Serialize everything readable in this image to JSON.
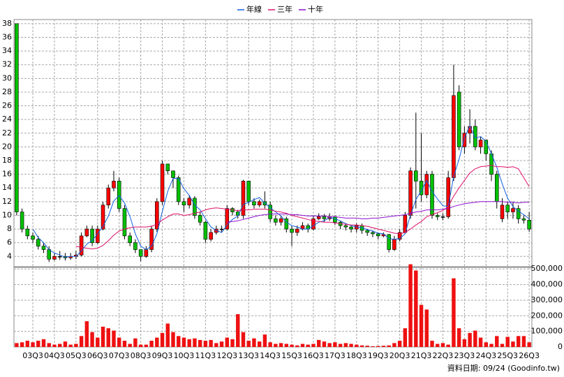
{
  "chart_data": [
    {
      "type": "candlestick",
      "categories": [
        null,
        null,
        null,
        "03Q3",
        null,
        null,
        null,
        "04Q3",
        null,
        null,
        null,
        "05Q3",
        null,
        null,
        null,
        "06Q3",
        null,
        null,
        null,
        "07Q3",
        null,
        null,
        null,
        "08Q3",
        null,
        null,
        null,
        "09Q3",
        null,
        null,
        null,
        "10Q3",
        null,
        null,
        null,
        "11Q3",
        null,
        null,
        null,
        "12Q3",
        null,
        null,
        null,
        "13Q3",
        null,
        null,
        null,
        "14Q3",
        null,
        null,
        null,
        "15Q3",
        null,
        null,
        null,
        "16Q3",
        null,
        null,
        null,
        "17Q3",
        null,
        null,
        null,
        "18Q3",
        null,
        null,
        null,
        "19Q3",
        null,
        null,
        null,
        "20Q3",
        null,
        null,
        null,
        "21Q3",
        null,
        null,
        null,
        "22Q3",
        null,
        null,
        null,
        "23Q3",
        null,
        null,
        null,
        "24Q3",
        null,
        null,
        null,
        "25Q3",
        null,
        null,
        null,
        "26Q3"
      ],
      "open": [
        38,
        10.5,
        8,
        7,
        6.5,
        5.5,
        5,
        3.6,
        4,
        4,
        3.8,
        4,
        4.2,
        7,
        8,
        6,
        8,
        11.5,
        14,
        15,
        11,
        7,
        6,
        5,
        4,
        5,
        8,
        12,
        17.5,
        16.5,
        15.5,
        12,
        11.5,
        12.5,
        10,
        9,
        6.5,
        7.5,
        8,
        8,
        11,
        10.5,
        10,
        15,
        12,
        11.5,
        12,
        11.5,
        9.5,
        9,
        9.5,
        8,
        7.5,
        8,
        8.5,
        8,
        9.5,
        9.8,
        9.5,
        9.8,
        9,
        8.5,
        8.3,
        8,
        8.5,
        7.8,
        7.5,
        7.3,
        7,
        7.2,
        5,
        6.5,
        7.5,
        10,
        16.5,
        15,
        13,
        16,
        10,
        9.8,
        9.8,
        15.5,
        28,
        20,
        22,
        23,
        20,
        21,
        19,
        16,
        9.5,
        11.5,
        10.5,
        11,
        9.5,
        9.3
      ],
      "high": [
        38,
        11,
        8.5,
        7.5,
        7,
        6,
        5.5,
        4.5,
        4.8,
        4.5,
        4.5,
        4.8,
        7.5,
        8.5,
        8.5,
        8.5,
        12,
        14.5,
        16.5,
        15.5,
        11.5,
        7.5,
        6.5,
        5,
        5.5,
        8.5,
        12.5,
        18,
        17.5,
        16.5,
        15.8,
        12.5,
        13,
        12.8,
        10.5,
        9.2,
        8,
        8.5,
        8.5,
        11.5,
        11.2,
        10.8,
        15.2,
        15,
        12.5,
        12.3,
        13.5,
        12,
        10,
        10,
        9.8,
        8.5,
        8.5,
        9,
        8.8,
        10,
        10.3,
        10.2,
        10.3,
        10,
        9.2,
        8.8,
        8.5,
        8.8,
        8.8,
        8,
        7.8,
        7.5,
        7.5,
        7.3,
        7,
        8,
        10.5,
        17,
        25,
        22,
        16.5,
        16.5,
        10.3,
        10.3,
        16.5,
        32,
        29,
        23,
        25.5,
        24,
        21.5,
        21,
        19.5,
        16.5,
        12.5,
        12,
        12,
        11.5,
        10,
        10.5
      ],
      "low": [
        10,
        7.5,
        6.5,
        6,
        5,
        4.5,
        3.2,
        3.4,
        3.5,
        3.4,
        3.5,
        3.6,
        4,
        6.8,
        5.5,
        5.8,
        7.8,
        11,
        13.5,
        10.5,
        6.5,
        5.5,
        4.5,
        3.3,
        3.8,
        4.6,
        7.6,
        11.5,
        16,
        14,
        11.5,
        10.5,
        11,
        9.5,
        8.5,
        6,
        6.2,
        7.2,
        7.5,
        7.8,
        10,
        9.5,
        9.5,
        11.5,
        11,
        11.2,
        11,
        9,
        8.5,
        8.5,
        7.5,
        5.5,
        7,
        7.8,
        7.5,
        7.8,
        9.3,
        9,
        9.2,
        8.6,
        8,
        7.8,
        7.5,
        7.5,
        7.3,
        7,
        6.8,
        6.5,
        6.8,
        4.6,
        4.8,
        6.2,
        7.3,
        9.5,
        11,
        12,
        12.5,
        9.5,
        9.3,
        9.3,
        9.5,
        15,
        19.5,
        19,
        20.5,
        19.5,
        19,
        18,
        15,
        11,
        9,
        9.5,
        9.5,
        8.8,
        8.8,
        7.6
      ],
      "close": [
        10.5,
        8,
        7,
        6.5,
        5.5,
        5,
        3.6,
        4,
        4,
        3.8,
        4,
        4.2,
        7,
        8,
        6,
        8,
        11.5,
        14,
        15,
        11,
        7,
        6,
        5,
        4,
        5,
        8,
        12,
        17.5,
        16.5,
        15.5,
        12,
        11.5,
        12.5,
        10,
        9,
        6.5,
        7.5,
        8,
        8,
        11,
        10.5,
        10,
        15,
        12,
        11.5,
        12,
        11.5,
        9.5,
        9,
        9.5,
        8,
        7.5,
        8,
        8.5,
        8,
        9.5,
        9.8,
        9.5,
        9.8,
        9,
        8.5,
        8.3,
        8,
        8.5,
        7.8,
        7.5,
        7.3,
        7,
        7.2,
        5,
        6.5,
        7.5,
        10,
        16.5,
        15,
        13,
        16,
        10,
        9.8,
        9.8,
        15.5,
        27.5,
        20,
        22,
        23,
        20,
        21,
        19,
        16,
        12,
        11.5,
        10.5,
        11,
        9.5,
        9.3,
        8
      ],
      "up_color": "#ff0000",
      "down_color": "#00c000",
      "series": [
        {
          "name": "年線",
          "color": "#1060e0",
          "values": [
            null,
            null,
            null,
            8,
            6.75,
            6,
            5,
            4.5,
            4.2,
            3.9,
            4,
            4,
            4.8,
            5.8,
            6.3,
            7.3,
            8.4,
            9.9,
            12.1,
            12.9,
            11.8,
            9.8,
            7.3,
            5.5,
            5,
            5.5,
            7.3,
            10.6,
            13.5,
            15.4,
            15.4,
            13.9,
            12.9,
            11.5,
            10.8,
            9.5,
            8.3,
            7.8,
            7.5,
            8.6,
            9.4,
            9.9,
            11.6,
            11.9,
            12.3,
            12.6,
            11.8,
            11.1,
            10.5,
            9.9,
            9,
            8.5,
            8.3,
            8,
            8,
            8.5,
            9,
            9.2,
            9.7,
            9.5,
            9.2,
            8.8,
            8.5,
            8.3,
            8.2,
            7.9,
            7.7,
            7.4,
            7.3,
            6.6,
            6.5,
            6.6,
            7.3,
            10.1,
            12.3,
            13.6,
            15.1,
            13.5,
            12.4,
            11.4,
            11.3,
            15.7,
            18.2,
            21.3,
            23.1,
            21.3,
            21.5,
            20.8,
            19,
            17,
            14.6,
            12.5,
            11.3,
            10.6,
            10.1,
            9.5
          ]
        },
        {
          "name": "三年",
          "color": "#e0106a",
          "values": [
            null,
            null,
            null,
            null,
            null,
            null,
            null,
            null,
            null,
            null,
            null,
            5.5,
            5.3,
            5.2,
            5.1,
            5.2,
            5.6,
            6.3,
            7.1,
            7.7,
            8,
            8.2,
            8.3,
            8.3,
            8.3,
            8.4,
            8.7,
            9.3,
            9.8,
            10.2,
            10.2,
            10,
            10.1,
            10.3,
            10.5,
            10.8,
            11,
            11.1,
            11,
            10.9,
            10.8,
            10.7,
            10.8,
            10.8,
            10.9,
            10.9,
            10.9,
            10.8,
            10.6,
            10.5,
            10.3,
            10,
            9.8,
            9.6,
            9.4,
            9.2,
            9.1,
            9,
            9,
            8.9,
            8.8,
            8.7,
            8.6,
            8.6,
            8.5,
            8.4,
            8.2,
            8,
            7.8,
            7.6,
            7.4,
            7.3,
            7.5,
            8,
            8.6,
            9.1,
            9.8,
            10.1,
            10.4,
            10.7,
            11.3,
            12.8,
            14,
            15.1,
            16.2,
            16.8,
            17.1,
            17.2,
            17.3,
            17.1,
            17.1,
            17,
            17.1,
            16.8,
            15.5,
            14.2
          ]
        },
        {
          "name": "十年",
          "color": "#9010d0",
          "values": [
            null,
            null,
            null,
            null,
            null,
            null,
            null,
            null,
            null,
            null,
            null,
            null,
            null,
            null,
            null,
            null,
            null,
            null,
            null,
            null,
            null,
            null,
            null,
            null,
            null,
            null,
            null,
            null,
            null,
            null,
            null,
            null,
            null,
            null,
            null,
            null,
            null,
            null,
            null,
            9,
            9.1,
            9.2,
            9.4,
            9.6,
            9.8,
            10,
            10.1,
            10.2,
            10.2,
            10.2,
            10.2,
            10.1,
            10.1,
            10,
            9.9,
            9.9,
            9.9,
            9.9,
            9.8,
            9.8,
            9.7,
            9.6,
            9.6,
            9.6,
            9.5,
            9.5,
            9.6,
            9.6,
            9.7,
            9.8,
            9.9,
            10,
            10.1,
            10.3,
            10.5,
            10.6,
            10.8,
            10.8,
            10.8,
            10.9,
            11,
            11.3,
            11.5,
            11.7,
            11.8,
            11.9,
            12,
            12,
            12,
            12,
            12,
            11.9,
            11.9,
            11.8,
            11.9,
            11.9
          ]
        }
      ],
      "ylim": [
        2.5,
        38.6
      ],
      "yticks": [
        4,
        6,
        8,
        10,
        12,
        14,
        16,
        18,
        20,
        22,
        24,
        26,
        28,
        30,
        32,
        34,
        36,
        38
      ],
      "grid": true
    },
    {
      "type": "bar",
      "color": "#ee1111",
      "values": [
        25000,
        30000,
        40000,
        30000,
        40000,
        50000,
        25000,
        15000,
        20000,
        35000,
        15000,
        20000,
        70000,
        165000,
        95000,
        60000,
        130000,
        120000,
        105000,
        60000,
        40000,
        20000,
        55000,
        15000,
        15000,
        40000,
        60000,
        90000,
        150000,
        95000,
        70000,
        60000,
        50000,
        55000,
        45000,
        40000,
        45000,
        25000,
        35000,
        60000,
        50000,
        210000,
        95000,
        40000,
        55000,
        35000,
        80000,
        30000,
        20000,
        25000,
        20000,
        15000,
        10000,
        20000,
        15000,
        20000,
        45000,
        35000,
        25000,
        30000,
        20000,
        25000,
        20000,
        15000,
        10000,
        8000,
        5000,
        6000,
        8000,
        10000,
        25000,
        40000,
        120000,
        530000,
        490000,
        270000,
        240000,
        40000,
        20000,
        25000,
        15000,
        440000,
        120000,
        50000,
        90000,
        105000,
        60000,
        30000,
        20000,
        70000,
        20000,
        65000,
        35000,
        70000,
        70000,
        30000
      ],
      "ylim": [
        0,
        510000
      ],
      "yticks": [
        0,
        {
          "value": 100000,
          "label": "100,000"
        },
        {
          "value": 200000,
          "label": "200,000"
        },
        {
          "value": 300000,
          "label": "300,000"
        },
        {
          "value": 400000,
          "label": "400,000"
        },
        {
          "value": 500000,
          "label": "500,000"
        }
      ],
      "grid": true
    }
  ],
  "footer": "資料日期: 09/24 (Goodinfo.tw)"
}
